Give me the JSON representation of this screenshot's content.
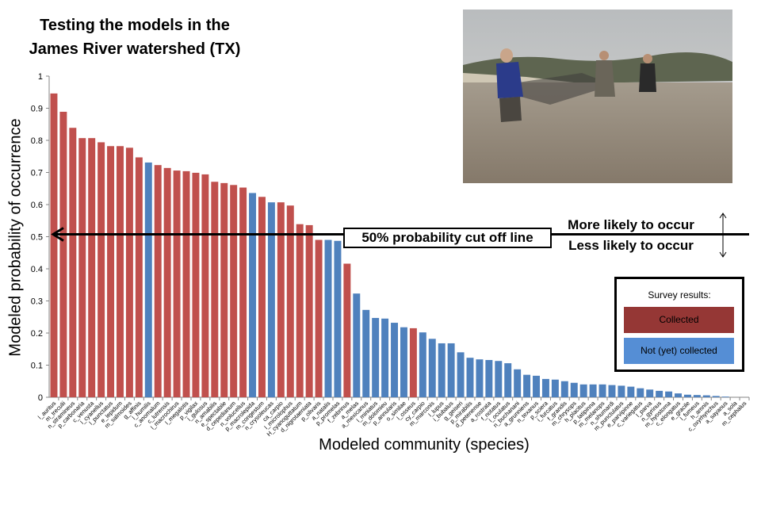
{
  "title_lines": [
    "Testing the models in the",
    "James River watershed (TX)"
  ],
  "annotations": {
    "cutoff_label": "50% probability  cut off line",
    "more_likely": "More likely to occur",
    "less_likely": "Less likely to occur"
  },
  "legend": {
    "title": "Survey results:",
    "collected": "Collected",
    "not_collected": "Not (yet) collected",
    "collected_color": "#953735",
    "not_collected_color": "#558ed5"
  },
  "photo": {
    "icon": "photo-people-seining-river"
  },
  "chart_data": {
    "type": "bar",
    "xlabel": "Modeled community (species)",
    "ylabel": "Modeled probability of occurrence",
    "ylim": [
      0,
      1
    ],
    "yticks": [
      "0",
      "0.1",
      "0.2",
      "0.3",
      "0.4",
      "0.5",
      "0.6",
      "0.7",
      "0.8",
      "0.9",
      "1"
    ],
    "cutoff": 0.5,
    "colors": {
      "collected": "#c0504d",
      "not_collected": "#4f81bd"
    },
    "categories": [
      "l_auritus",
      "m_treculii",
      "n_stramineus",
      "p_carbonaria",
      "c_venusta",
      "l_cyanellus",
      "l_punctatus",
      "e_lepidum",
      "m_salmoides",
      "g_affinis",
      "l_humilis",
      "c_anomalum",
      "c_lutrensis",
      "l_macrochirus",
      "l_megalotis",
      "p_vigilax",
      "l_gulosus",
      "n_amabilis",
      "e_spectabile",
      "d_cepedianum",
      "n_volucellus",
      "p_macrolepida",
      "m_congestum",
      "n_crysoleucas",
      "ca_carpio",
      "l_microlophus",
      "H_cyanoguttatum",
      "d_nigrotaeniata",
      "p_olivaris",
      "a_natalis",
      "p_promelas",
      "f_zebrinus",
      "a_melas",
      "a_mexicanus",
      "l_miniatus",
      "m_dolomieu",
      "p_annularis",
      "o_similae",
      "l_osseus",
      "cy_carpio",
      "m_marconis",
      "l_lupus",
      "i_bubalus",
      "g_geiseri",
      "p_mirabilis",
      "d_petenense",
      "a_rostrata",
      "f_notatus",
      "l_oculatus",
      "n_buchanani",
      "a_grunniens",
      "n_texanus",
      "p_sciera",
      "i_furcatus",
      "f_grandis",
      "m_chrysops",
      "h_placitus",
      "p_latipinna",
      "m_melanops",
      "n_shumardi",
      "m_punctulatus",
      "e_parvipinne",
      "c_variegatus",
      "l_parva",
      "n_gyrinus",
      "m_hyostoma",
      "c_elongatus",
      "e_gracile",
      "l_fumeus",
      "h_amnis",
      "c_oxyrhynchus",
      "a_sayanus",
      "a_sola",
      "m_cephalus"
    ],
    "values": [
      0.946,
      0.889,
      0.839,
      0.807,
      0.807,
      0.794,
      0.782,
      0.782,
      0.777,
      0.747,
      0.731,
      0.723,
      0.714,
      0.706,
      0.704,
      0.699,
      0.694,
      0.671,
      0.667,
      0.661,
      0.653,
      0.636,
      0.624,
      0.607,
      0.607,
      0.597,
      0.539,
      0.536,
      0.49,
      0.49,
      0.487,
      0.416,
      0.323,
      0.272,
      0.247,
      0.245,
      0.232,
      0.218,
      0.215,
      0.202,
      0.182,
      0.168,
      0.168,
      0.14,
      0.123,
      0.118,
      0.116,
      0.113,
      0.106,
      0.087,
      0.07,
      0.067,
      0.057,
      0.055,
      0.05,
      0.045,
      0.04,
      0.04,
      0.04,
      0.038,
      0.036,
      0.033,
      0.028,
      0.024,
      0.02,
      0.018,
      0.012,
      0.008,
      0.007,
      0.006,
      0.004,
      0.002,
      0,
      0
    ],
    "collected": [
      1,
      1,
      1,
      1,
      1,
      1,
      1,
      1,
      1,
      1,
      0,
      1,
      1,
      1,
      1,
      1,
      1,
      1,
      1,
      1,
      1,
      0,
      1,
      0,
      1,
      1,
      1,
      1,
      1,
      0,
      0,
      1,
      0,
      0,
      0,
      0,
      0,
      0,
      1,
      0,
      0,
      0,
      0,
      0,
      0,
      0,
      0,
      0,
      0,
      0,
      0,
      0,
      0,
      0,
      0,
      0,
      0,
      0,
      0,
      0,
      0,
      0,
      0,
      0,
      0,
      0,
      0,
      0,
      0,
      0,
      0,
      0,
      0,
      0
    ]
  }
}
